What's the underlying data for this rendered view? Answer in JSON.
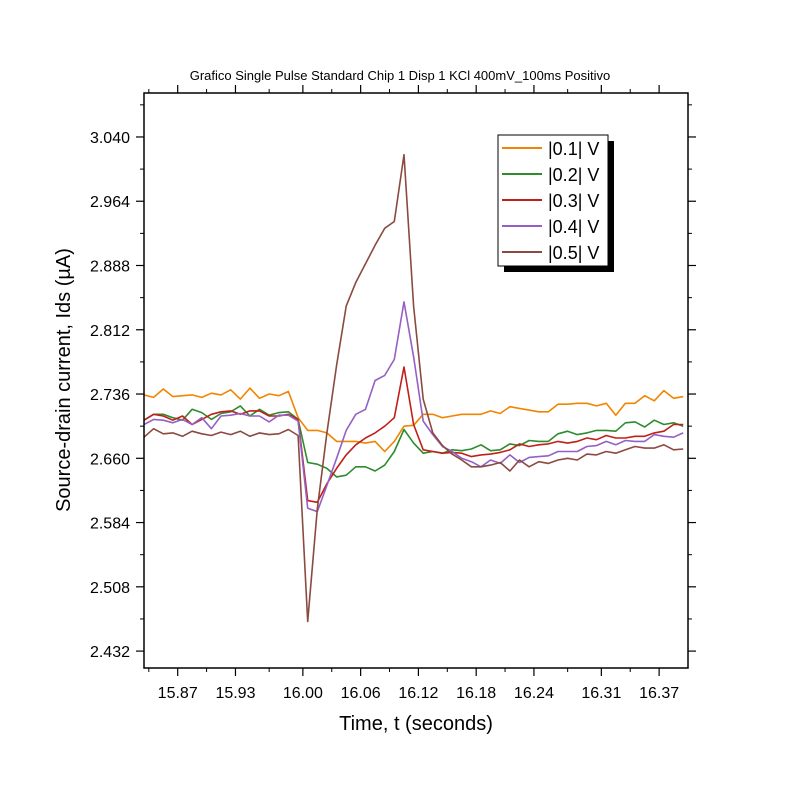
{
  "chart_data": {
    "type": "line",
    "title": "Grafico Single Pulse Standard Chip 1 Disp 1 KCl 400mV_100ms Positivo",
    "xlabel": "Time, t (seconds)",
    "ylabel": "Source-drain current, Ids (µA)",
    "xlim": [
      15.835,
      16.4
    ],
    "ylim": [
      2.412,
      3.092
    ],
    "x_ticks": [
      15.87,
      15.93,
      16.0,
      16.06,
      16.12,
      16.18,
      16.24,
      16.31,
      16.37
    ],
    "x_tick_labels": [
      "15.87",
      "15.93",
      "16.00",
      "16.06",
      "16.12",
      "16.18",
      "16.24",
      "16.31",
      "16.37"
    ],
    "y_ticks": [
      2.432,
      2.508,
      2.584,
      2.66,
      2.736,
      2.812,
      2.888,
      2.964,
      3.04
    ],
    "y_tick_labels": [
      "2.432",
      "2.508",
      "2.584",
      "2.660",
      "2.736",
      "2.812",
      "2.888",
      "2.964",
      "3.040"
    ],
    "grid": false,
    "legend_position": "top-right",
    "series": [
      {
        "name": "|0.1| V",
        "color": "#f28500",
        "x": [
          15.835,
          15.845,
          15.855,
          15.865,
          15.875,
          15.885,
          15.895,
          15.905,
          15.915,
          15.925,
          15.935,
          15.945,
          15.955,
          15.965,
          15.975,
          15.985,
          15.995,
          16.005,
          16.015,
          16.025,
          16.035,
          16.045,
          16.055,
          16.065,
          16.075,
          16.085,
          16.095,
          16.105,
          16.115,
          16.125,
          16.135,
          16.145,
          16.155,
          16.165,
          16.175,
          16.185,
          16.195,
          16.205,
          16.215,
          16.225,
          16.235,
          16.245,
          16.255,
          16.265,
          16.275,
          16.285,
          16.295,
          16.305,
          16.315,
          16.325,
          16.335,
          16.345,
          16.355,
          16.365,
          16.375,
          16.385,
          16.395
        ],
        "y": [
          2.735,
          2.732,
          2.742,
          2.733,
          2.734,
          2.735,
          2.732,
          2.737,
          2.735,
          2.741,
          2.73,
          2.743,
          2.731,
          2.736,
          2.734,
          2.739,
          2.708,
          2.693,
          2.693,
          2.69,
          2.68,
          2.68,
          2.68,
          2.678,
          2.68,
          2.668,
          2.68,
          2.698,
          2.699,
          2.712,
          2.712,
          2.708,
          2.71,
          2.712,
          2.712,
          2.712,
          2.716,
          2.713,
          2.721,
          2.719,
          2.717,
          2.715,
          2.715,
          2.724,
          2.724,
          2.725,
          2.725,
          2.722,
          2.725,
          2.711,
          2.725,
          2.725,
          2.734,
          2.728,
          2.74,
          2.731,
          2.733
        ]
      },
      {
        "name": "|0.2| V",
        "color": "#2e8b2e",
        "x": [
          15.835,
          15.845,
          15.855,
          15.865,
          15.875,
          15.885,
          15.895,
          15.905,
          15.915,
          15.925,
          15.935,
          15.945,
          15.955,
          15.965,
          15.975,
          15.985,
          15.995,
          16.005,
          16.015,
          16.025,
          16.035,
          16.045,
          16.055,
          16.065,
          16.075,
          16.085,
          16.095,
          16.105,
          16.115,
          16.125,
          16.135,
          16.145,
          16.155,
          16.165,
          16.175,
          16.185,
          16.195,
          16.205,
          16.215,
          16.225,
          16.235,
          16.245,
          16.255,
          16.265,
          16.275,
          16.285,
          16.295,
          16.305,
          16.315,
          16.325,
          16.335,
          16.345,
          16.355,
          16.365,
          16.375,
          16.385,
          16.395
        ],
        "y": [
          2.705,
          2.712,
          2.712,
          2.708,
          2.705,
          2.718,
          2.714,
          2.706,
          2.713,
          2.715,
          2.722,
          2.71,
          2.718,
          2.711,
          2.714,
          2.715,
          2.706,
          2.655,
          2.653,
          2.648,
          2.638,
          2.64,
          2.65,
          2.65,
          2.645,
          2.652,
          2.668,
          2.694,
          2.678,
          2.666,
          2.668,
          2.666,
          2.67,
          2.669,
          2.671,
          2.676,
          2.669,
          2.67,
          2.677,
          2.675,
          2.681,
          2.68,
          2.68,
          2.689,
          2.692,
          2.688,
          2.69,
          2.693,
          2.693,
          2.692,
          2.702,
          2.703,
          2.697,
          2.705,
          2.7,
          2.702,
          2.698
        ]
      },
      {
        "name": "|0.3| V",
        "color": "#c0201a",
        "x": [
          15.835,
          15.845,
          15.855,
          15.865,
          15.875,
          15.885,
          15.895,
          15.905,
          15.915,
          15.925,
          15.935,
          15.945,
          15.955,
          15.965,
          15.975,
          15.985,
          15.995,
          16.005,
          16.015,
          16.025,
          16.035,
          16.045,
          16.055,
          16.065,
          16.075,
          16.085,
          16.095,
          16.105,
          16.115,
          16.125,
          16.135,
          16.145,
          16.155,
          16.165,
          16.175,
          16.185,
          16.195,
          16.205,
          16.215,
          16.225,
          16.235,
          16.245,
          16.255,
          16.265,
          16.275,
          16.285,
          16.295,
          16.305,
          16.315,
          16.325,
          16.335,
          16.345,
          16.355,
          16.365,
          16.375,
          16.385,
          16.395
        ],
        "y": [
          2.705,
          2.712,
          2.71,
          2.705,
          2.71,
          2.7,
          2.706,
          2.712,
          2.715,
          2.716,
          2.712,
          2.716,
          2.716,
          2.71,
          2.71,
          2.712,
          2.706,
          2.61,
          2.608,
          2.63,
          2.648,
          2.664,
          2.676,
          2.684,
          2.69,
          2.698,
          2.708,
          2.768,
          2.7,
          2.67,
          2.668,
          2.666,
          2.667,
          2.666,
          2.662,
          2.664,
          2.665,
          2.667,
          2.67,
          2.677,
          2.674,
          2.676,
          2.677,
          2.68,
          2.678,
          2.68,
          2.684,
          2.682,
          2.687,
          2.684,
          2.684,
          2.686,
          2.686,
          2.69,
          2.692,
          2.7,
          2.7
        ]
      },
      {
        "name": "|0.4| V",
        "color": "#9460c4",
        "x": [
          15.835,
          15.845,
          15.855,
          15.865,
          15.875,
          15.885,
          15.895,
          15.905,
          15.915,
          15.925,
          15.935,
          15.945,
          15.955,
          15.965,
          15.975,
          15.985,
          15.995,
          16.005,
          16.015,
          16.025,
          16.035,
          16.045,
          16.055,
          16.065,
          16.075,
          16.085,
          16.095,
          16.105,
          16.115,
          16.125,
          16.135,
          16.145,
          16.155,
          16.165,
          16.175,
          16.185,
          16.195,
          16.205,
          16.215,
          16.225,
          16.235,
          16.245,
          16.255,
          16.265,
          16.275,
          16.285,
          16.295,
          16.305,
          16.315,
          16.325,
          16.335,
          16.345,
          16.355,
          16.365,
          16.375,
          16.385,
          16.395
        ],
        "y": [
          2.7,
          2.706,
          2.705,
          2.702,
          2.706,
          2.7,
          2.708,
          2.695,
          2.71,
          2.711,
          2.713,
          2.71,
          2.71,
          2.703,
          2.711,
          2.711,
          2.704,
          2.601,
          2.597,
          2.628,
          2.66,
          2.693,
          2.712,
          2.718,
          2.752,
          2.758,
          2.777,
          2.845,
          2.78,
          2.704,
          2.688,
          2.674,
          2.668,
          2.66,
          2.656,
          2.65,
          2.658,
          2.654,
          2.664,
          2.655,
          2.661,
          2.662,
          2.663,
          2.668,
          2.668,
          2.668,
          2.674,
          2.675,
          2.68,
          2.676,
          2.681,
          2.68,
          2.68,
          2.688,
          2.686,
          2.685,
          2.69
        ]
      },
      {
        "name": "|0.5| V",
        "color": "#8b4a40",
        "x": [
          15.835,
          15.845,
          15.855,
          15.865,
          15.875,
          15.885,
          15.895,
          15.905,
          15.915,
          15.925,
          15.935,
          15.945,
          15.955,
          15.965,
          15.975,
          15.985,
          15.995,
          16.005,
          16.015,
          16.025,
          16.035,
          16.045,
          16.055,
          16.065,
          16.075,
          16.085,
          16.095,
          16.105,
          16.115,
          16.125,
          16.135,
          16.145,
          16.155,
          16.165,
          16.175,
          16.185,
          16.195,
          16.205,
          16.215,
          16.225,
          16.235,
          16.245,
          16.255,
          16.265,
          16.275,
          16.285,
          16.295,
          16.305,
          16.315,
          16.325,
          16.335,
          16.345,
          16.355,
          16.365,
          16.375,
          16.385,
          16.395
        ],
        "y": [
          2.685,
          2.695,
          2.689,
          2.69,
          2.686,
          2.692,
          2.689,
          2.687,
          2.691,
          2.688,
          2.692,
          2.686,
          2.69,
          2.688,
          2.689,
          2.694,
          2.687,
          2.467,
          2.6,
          2.69,
          2.77,
          2.84,
          2.868,
          2.89,
          2.912,
          2.932,
          2.94,
          3.019,
          2.84,
          2.73,
          2.69,
          2.675,
          2.665,
          2.658,
          2.65,
          2.65,
          2.652,
          2.655,
          2.645,
          2.658,
          2.65,
          2.656,
          2.654,
          2.658,
          2.66,
          2.658,
          2.665,
          2.664,
          2.668,
          2.666,
          2.67,
          2.674,
          2.672,
          2.672,
          2.676,
          2.67,
          2.671
        ]
      }
    ]
  }
}
